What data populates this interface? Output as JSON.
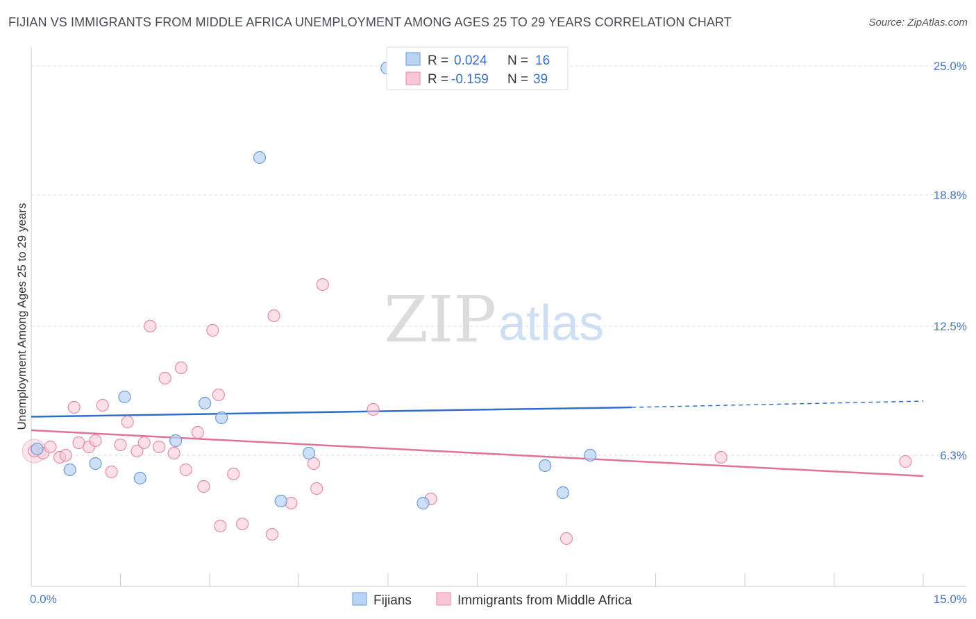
{
  "title": "FIJIAN VS IMMIGRANTS FROM MIDDLE AFRICA UNEMPLOYMENT AMONG AGES 25 TO 29 YEARS CORRELATION CHART",
  "source": "Source: ZipAtlas.com",
  "watermark": {
    "zip": "ZIP",
    "atlas": "atlas"
  },
  "legend_top": {
    "r_label": "R =",
    "n_label": "N =",
    "rows": [
      {
        "r": "0.024",
        "n": "16"
      },
      {
        "r": "-0.159",
        "n": "39"
      }
    ]
  },
  "colors": {
    "blue_fill": "#b9d3f3",
    "blue_stroke": "#6a9ad8",
    "blue_line": "#2f6fc9",
    "pink_fill": "#f8c6d6",
    "pink_stroke": "#e58aa9",
    "pink_line": "#e2709a",
    "grid": "#dddddd",
    "axis_text": "#4a78c2"
  },
  "chart_data": {
    "type": "scatter",
    "title": "FIJIAN VS IMMIGRANTS FROM MIDDLE AFRICA UNEMPLOYMENT AMONG AGES 25 TO 29 YEARS CORRELATION CHART",
    "xlabel": "",
    "ylabel": "Unemployment Among Ages 25 to 29 years",
    "xlim": [
      0,
      15
    ],
    "ylim": [
      0,
      25.5
    ],
    "x_tick_labels": [
      "0.0%",
      "15.0%"
    ],
    "y_ticks": [
      6.3,
      12.5,
      18.8,
      25.0
    ],
    "y_tick_labels": [
      "6.3%",
      "12.5%",
      "18.8%",
      "25.0%"
    ],
    "grid": true,
    "legend_position": "bottom",
    "series": [
      {
        "name": "Fijians",
        "points": [
          [
            0.1,
            6.6
          ],
          [
            0.65,
            5.6
          ],
          [
            1.08,
            5.9
          ],
          [
            1.57,
            9.1
          ],
          [
            1.83,
            5.2
          ],
          [
            2.43,
            7.0
          ],
          [
            2.92,
            8.8
          ],
          [
            3.2,
            8.1
          ],
          [
            3.84,
            20.6
          ],
          [
            4.2,
            4.1
          ],
          [
            4.67,
            6.4
          ],
          [
            5.98,
            24.9
          ],
          [
            6.59,
            4.0
          ],
          [
            8.64,
            5.8
          ],
          [
            8.94,
            4.5
          ],
          [
            9.4,
            6.3
          ]
        ],
        "trend": {
          "x": [
            0,
            10.1
          ],
          "y": [
            8.15,
            8.6
          ],
          "dashed_to": [
            15,
            8.9
          ]
        }
      },
      {
        "name": "Immigrants from Middle Africa",
        "points": [
          [
            0.05,
            6.5
          ],
          [
            0.2,
            6.4
          ],
          [
            0.32,
            6.7
          ],
          [
            0.48,
            6.2
          ],
          [
            0.58,
            6.3
          ],
          [
            0.72,
            8.6
          ],
          [
            0.8,
            6.9
          ],
          [
            0.97,
            6.7
          ],
          [
            1.08,
            7.0
          ],
          [
            1.2,
            8.7
          ],
          [
            1.35,
            5.5
          ],
          [
            1.5,
            6.8
          ],
          [
            1.62,
            7.9
          ],
          [
            1.78,
            6.5
          ],
          [
            1.9,
            6.9
          ],
          [
            2.0,
            12.5
          ],
          [
            2.15,
            6.7
          ],
          [
            2.25,
            10.0
          ],
          [
            2.4,
            6.4
          ],
          [
            2.52,
            10.5
          ],
          [
            2.6,
            5.6
          ],
          [
            2.8,
            7.4
          ],
          [
            2.9,
            4.8
          ],
          [
            3.05,
            12.3
          ],
          [
            3.15,
            9.2
          ],
          [
            3.18,
            2.9
          ],
          [
            3.4,
            5.4
          ],
          [
            3.55,
            3.0
          ],
          [
            4.05,
            2.5
          ],
          [
            4.08,
            13.0
          ],
          [
            4.37,
            4.0
          ],
          [
            4.75,
            5.9
          ],
          [
            4.8,
            4.7
          ],
          [
            4.9,
            14.5
          ],
          [
            5.75,
            8.5
          ],
          [
            6.72,
            4.2
          ],
          [
            9.0,
            2.3
          ],
          [
            11.6,
            6.2
          ],
          [
            14.7,
            6.0
          ]
        ],
        "trend": {
          "x": [
            0,
            15
          ],
          "y": [
            7.5,
            5.3
          ]
        }
      }
    ]
  },
  "bottom_legend": [
    "Fijians",
    "Immigrants from Middle Africa"
  ]
}
